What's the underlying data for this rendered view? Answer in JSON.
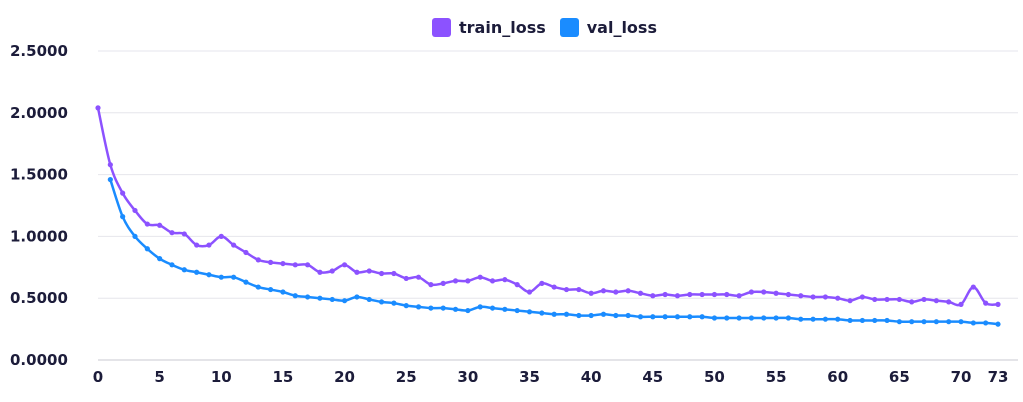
{
  "chart_data": {
    "type": "line",
    "title": "",
    "xlabel": "",
    "ylabel": "",
    "ylim": [
      0,
      2.5
    ],
    "xlim": [
      0,
      73
    ],
    "grid": "horizontal",
    "legend_position": "top-center",
    "y_ticks": [
      "0.0000",
      "0.5000",
      "1.0000",
      "1.5000",
      "2.0000",
      "2.5000"
    ],
    "x_ticks": [
      "0",
      "5",
      "10",
      "15",
      "20",
      "25",
      "30",
      "35",
      "40",
      "45",
      "50",
      "55",
      "60",
      "65",
      "70",
      "73"
    ],
    "series": [
      {
        "name": "train_loss",
        "color": "#8c52ff",
        "x": [
          0,
          1,
          2,
          3,
          4,
          5,
          6,
          7,
          8,
          9,
          10,
          11,
          12,
          13,
          14,
          15,
          16,
          17,
          18,
          19,
          20,
          21,
          22,
          23,
          24,
          25,
          26,
          27,
          28,
          29,
          30,
          31,
          32,
          33,
          34,
          35,
          36,
          37,
          38,
          39,
          40,
          41,
          42,
          43,
          44,
          45,
          46,
          47,
          48,
          49,
          50,
          51,
          52,
          53,
          54,
          55,
          56,
          57,
          58,
          59,
          60,
          61,
          62,
          63,
          64,
          65,
          66,
          67,
          68,
          69,
          70,
          71,
          72,
          73
        ],
        "values": [
          2.04,
          1.58,
          1.35,
          1.21,
          1.1,
          1.09,
          1.03,
          1.02,
          0.93,
          0.93,
          1.0,
          0.93,
          0.87,
          0.81,
          0.79,
          0.78,
          0.77,
          0.77,
          0.71,
          0.72,
          0.77,
          0.71,
          0.72,
          0.7,
          0.7,
          0.66,
          0.67,
          0.61,
          0.62,
          0.64,
          0.64,
          0.67,
          0.64,
          0.65,
          0.61,
          0.55,
          0.62,
          0.59,
          0.57,
          0.57,
          0.54,
          0.56,
          0.55,
          0.56,
          0.54,
          0.52,
          0.53,
          0.52,
          0.53,
          0.53,
          0.53,
          0.53,
          0.52,
          0.55,
          0.55,
          0.54,
          0.53,
          0.52,
          0.51,
          0.51,
          0.5,
          0.48,
          0.51,
          0.49,
          0.49,
          0.49,
          0.47,
          0.49,
          0.48,
          0.47,
          0.45,
          0.59,
          0.46,
          0.45
        ]
      },
      {
        "name": "val_loss",
        "color": "#1a8cff",
        "x": [
          1,
          2,
          3,
          4,
          5,
          6,
          7,
          8,
          9,
          10,
          11,
          12,
          13,
          14,
          15,
          16,
          17,
          18,
          19,
          20,
          21,
          22,
          23,
          24,
          25,
          26,
          27,
          28,
          29,
          30,
          31,
          32,
          33,
          34,
          35,
          36,
          37,
          38,
          39,
          40,
          41,
          42,
          43,
          44,
          45,
          46,
          47,
          48,
          49,
          50,
          51,
          52,
          53,
          54,
          55,
          56,
          57,
          58,
          59,
          60,
          61,
          62,
          63,
          64,
          65,
          66,
          67,
          68,
          69,
          70,
          71,
          72,
          73
        ],
        "values": [
          1.46,
          1.16,
          1.0,
          0.9,
          0.82,
          0.77,
          0.73,
          0.71,
          0.69,
          0.67,
          0.67,
          0.63,
          0.59,
          0.57,
          0.55,
          0.52,
          0.51,
          0.5,
          0.49,
          0.48,
          0.51,
          0.49,
          0.47,
          0.46,
          0.44,
          0.43,
          0.42,
          0.42,
          0.41,
          0.4,
          0.43,
          0.42,
          0.41,
          0.4,
          0.39,
          0.38,
          0.37,
          0.37,
          0.36,
          0.36,
          0.37,
          0.36,
          0.36,
          0.35,
          0.35,
          0.35,
          0.35,
          0.35,
          0.35,
          0.34,
          0.34,
          0.34,
          0.34,
          0.34,
          0.34,
          0.34,
          0.33,
          0.33,
          0.33,
          0.33,
          0.32,
          0.32,
          0.32,
          0.32,
          0.31,
          0.31,
          0.31,
          0.31,
          0.31,
          0.31,
          0.3,
          0.3,
          0.29
        ]
      }
    ]
  }
}
